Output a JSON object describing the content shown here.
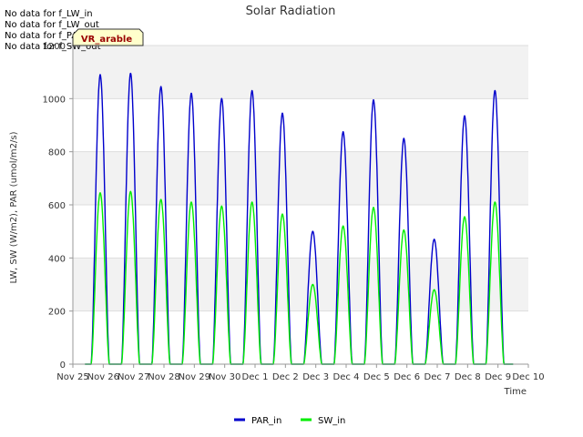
{
  "chart_data": {
    "type": "line",
    "title": "Solar Radiation",
    "xlabel": "Time",
    "ylabel": "LW, SW (W/m2), PAR (umol/m2/s)",
    "ylim": [
      0,
      1200
    ],
    "xlim": [
      0,
      15
    ],
    "x_ticks": [
      "Nov 25",
      "Nov 26",
      "Nov 27",
      "Nov 28",
      "Nov 29",
      "Nov 30",
      "Dec 1",
      "Dec 2",
      "Dec 3",
      "Dec 4",
      "Dec 5",
      "Dec 6",
      "Dec 7",
      "Dec 8",
      "Dec 9",
      "Dec 10"
    ],
    "y_ticks": [
      0,
      200,
      400,
      600,
      800,
      1000,
      1200
    ],
    "grid": "horizontal bands",
    "legend_position": "bottom-center",
    "notes": [
      "No data for f_LW_in",
      "No data for f_LW_out",
      "No data for f_PAR_out",
      "No data for f_SW_out"
    ],
    "badge": "VR_arable",
    "series": [
      {
        "name": "PAR_in",
        "color": "#0000cc",
        "daily_peaks": [
          {
            "day": 0.9,
            "peak": 1090
          },
          {
            "day": 1.9,
            "peak": 1095
          },
          {
            "day": 2.9,
            "peak": 1045
          },
          {
            "day": 3.9,
            "peak": 1020
          },
          {
            "day": 4.9,
            "peak": 1000
          },
          {
            "day": 5.9,
            "peak": 1030
          },
          {
            "day": 6.9,
            "peak": 945
          },
          {
            "day": 7.9,
            "peak": 500
          },
          {
            "day": 8.9,
            "peak": 875
          },
          {
            "day": 9.9,
            "peak": 995
          },
          {
            "day": 10.9,
            "peak": 850
          },
          {
            "day": 11.9,
            "peak": 470
          },
          {
            "day": 12.9,
            "peak": 935
          },
          {
            "day": 13.9,
            "peak": 1030
          }
        ]
      },
      {
        "name": "SW_in",
        "color": "#00ee00",
        "daily_peaks": [
          {
            "day": 0.9,
            "peak": 645
          },
          {
            "day": 1.9,
            "peak": 650
          },
          {
            "day": 2.9,
            "peak": 620
          },
          {
            "day": 3.9,
            "peak": 610
          },
          {
            "day": 4.9,
            "peak": 595
          },
          {
            "day": 5.9,
            "peak": 610
          },
          {
            "day": 6.9,
            "peak": 565
          },
          {
            "day": 7.9,
            "peak": 300
          },
          {
            "day": 8.9,
            "peak": 520
          },
          {
            "day": 9.9,
            "peak": 590
          },
          {
            "day": 10.9,
            "peak": 505
          },
          {
            "day": 11.9,
            "peak": 280
          },
          {
            "day": 12.9,
            "peak": 555
          },
          {
            "day": 13.9,
            "peak": 610
          }
        ]
      }
    ]
  }
}
